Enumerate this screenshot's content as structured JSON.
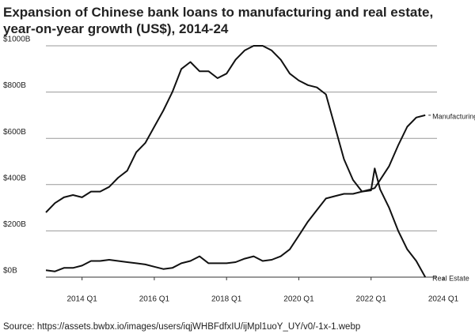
{
  "chart_data": {
    "type": "line",
    "title": [
      "Expansion of Chinese bank loans to manufacturing and real estate,",
      "year-on-year growth (US$), 2014-24"
    ],
    "source": "Source: https://assets.bwbx.io/images/users/iqjWHBFdfxIU/ijMpl1uoY_UY/v0/-1x-1.webp",
    "x": [
      2013,
      2013.25,
      2013.5,
      2013.75,
      2014,
      2014.25,
      2014.5,
      2014.75,
      2015,
      2015.25,
      2015.5,
      2015.75,
      2016,
      2016.25,
      2016.5,
      2016.75,
      2017,
      2017.25,
      2017.5,
      2017.75,
      2018,
      2018.25,
      2018.5,
      2018.75,
      2019,
      2019.25,
      2019.5,
      2019.75,
      2020,
      2020.25,
      2020.5,
      2020.75,
      2021,
      2021.25,
      2021.5,
      2021.75,
      2022,
      2022.1,
      2022.25,
      2022.5,
      2022.75,
      2023,
      2023.25,
      2023.5
    ],
    "series": [
      {
        "name": "Real Estate",
        "color": "#111111",
        "values": [
          280,
          320,
          345,
          355,
          345,
          370,
          370,
          390,
          430,
          460,
          540,
          580,
          650,
          720,
          800,
          900,
          930,
          890,
          890,
          860,
          880,
          940,
          980,
          1000,
          1000,
          980,
          940,
          880,
          850,
          830,
          820,
          790,
          650,
          510,
          420,
          370,
          375,
          470,
          380,
          300,
          200,
          120,
          70,
          0
        ]
      },
      {
        "name": "Manufacturing",
        "color": "#111111",
        "values": [
          30,
          25,
          40,
          40,
          50,
          70,
          70,
          75,
          70,
          65,
          60,
          55,
          45,
          35,
          40,
          60,
          70,
          90,
          60,
          60,
          60,
          65,
          80,
          90,
          70,
          75,
          90,
          120,
          180,
          240,
          290,
          340,
          350,
          360,
          360,
          370,
          380,
          385,
          420,
          480,
          570,
          650,
          690,
          700
        ]
      }
    ],
    "xlim": [
      2013,
      2024
    ],
    "xticks": [
      {
        "value": 2014,
        "label": "2014 Q1"
      },
      {
        "value": 2016,
        "label": "2016 Q1"
      },
      {
        "value": 2018,
        "label": "2018 Q1"
      },
      {
        "value": 2020,
        "label": "2020 Q1"
      },
      {
        "value": 2022,
        "label": "2022 Q1"
      },
      {
        "value": 2024,
        "label": "2024 Q1"
      }
    ],
    "ylim": [
      0,
      1000
    ],
    "yticks": [
      {
        "value": 0,
        "label": "$0B"
      },
      {
        "value": 200,
        "label": "$200B"
      },
      {
        "value": 400,
        "label": "$400B"
      },
      {
        "value": 600,
        "label": "$600B"
      },
      {
        "value": 800,
        "label": "$800B"
      },
      {
        "value": 1000,
        "label": "$1000B"
      }
    ],
    "grid": true
  }
}
